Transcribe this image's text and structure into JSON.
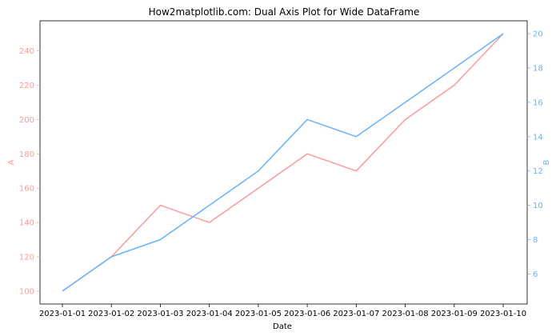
{
  "chart_data": {
    "type": "line",
    "title": "How2matplotlib.com: Dual Axis Plot for Wide DataFrame",
    "xlabel": "Date",
    "x": [
      "2023-01-01",
      "2023-01-02",
      "2023-01-03",
      "2023-01-04",
      "2023-01-05",
      "2023-01-06",
      "2023-01-07",
      "2023-01-08",
      "2023-01-09",
      "2023-01-10"
    ],
    "series": [
      {
        "name": "A",
        "axis": "left",
        "color": "#ff9999",
        "values": [
          100,
          120,
          150,
          140,
          160,
          180,
          170,
          200,
          220,
          250
        ]
      },
      {
        "name": "B",
        "axis": "right",
        "color": "#66b3ff",
        "values": [
          5,
          7,
          8,
          10,
          12,
          15,
          14,
          16,
          18,
          20
        ]
      }
    ],
    "y_left": {
      "label": "A",
      "color": "#ff9999",
      "ticks": [
        100,
        120,
        140,
        160,
        180,
        200,
        220,
        240
      ],
      "lim": [
        92.5,
        257.5
      ]
    },
    "y_right": {
      "label": "B",
      "color": "#66b3ff",
      "ticks": [
        6,
        8,
        10,
        12,
        14,
        16,
        18,
        20
      ],
      "lim": [
        4.25,
        20.75
      ]
    },
    "grid": false,
    "legend": "none"
  }
}
